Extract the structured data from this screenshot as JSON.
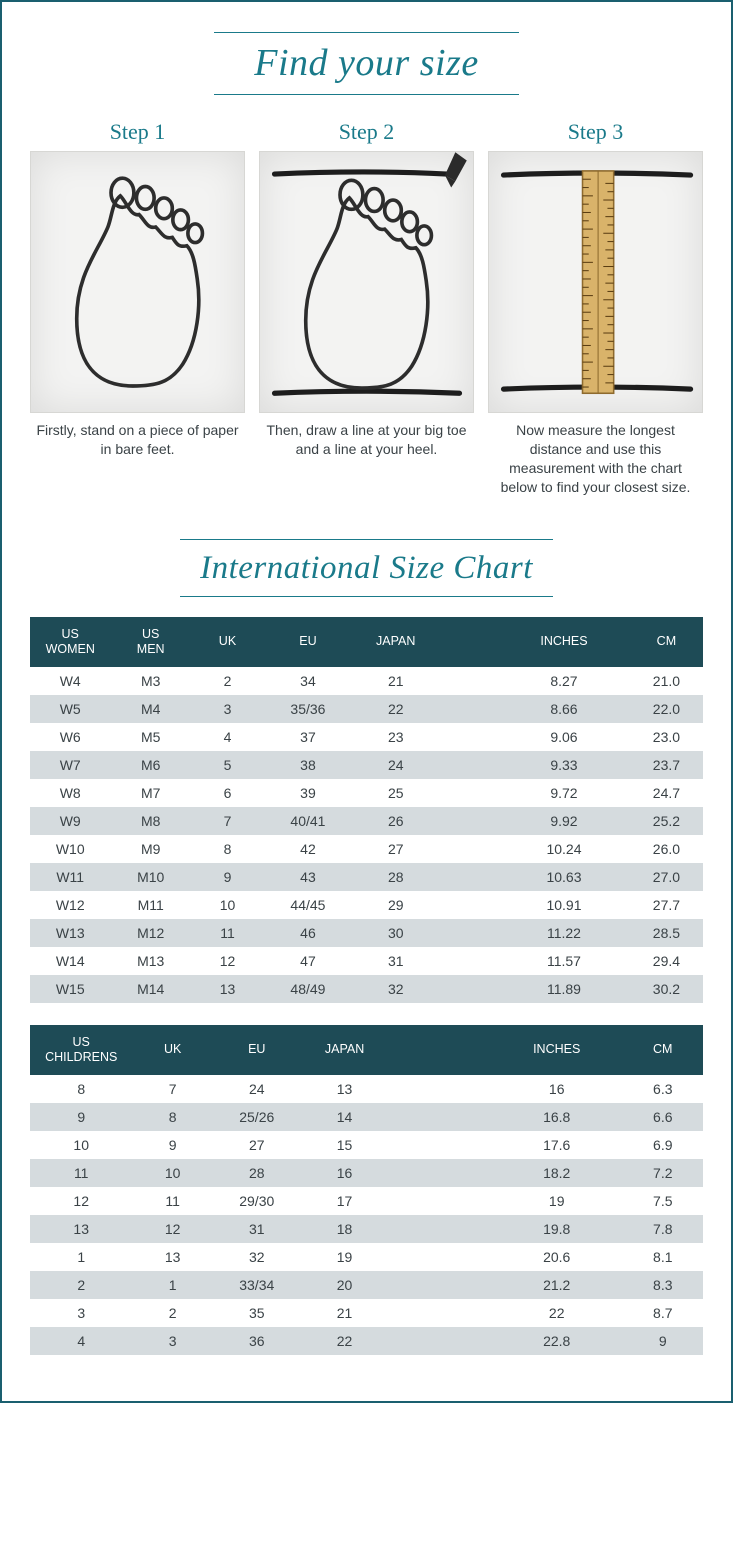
{
  "title": "Find your size",
  "chartTitle": "International Size Chart",
  "colors": {
    "accent": "#1a7a8a",
    "frame": "#1a5f6f",
    "headerBg": "#1e4b56",
    "rowAlt": "#d5dbde",
    "cardBg": "#f3f3f2",
    "textBody": "#3a4246",
    "pencilBody": "#2b2b2b",
    "rulerFill": "#d9b36a",
    "rulerEdge": "#8e6a2e"
  },
  "steps": [
    {
      "label": "Step 1",
      "caption": "Firstly, stand on a piece of paper in bare feet."
    },
    {
      "label": "Step 2",
      "caption": "Then, draw a line at your big toe and a line at your heel."
    },
    {
      "label": "Step 3",
      "caption": "Now measure the longest distance and use this measurement with the chart below to find your closest size."
    }
  ],
  "adultTable": {
    "headers": [
      "US WOMEN",
      "US MEN",
      "UK",
      "EU",
      "JAPAN",
      "",
      "INCHES",
      "CM"
    ],
    "rows": [
      [
        "W4",
        "M3",
        "2",
        "34",
        "21",
        "",
        "8.27",
        "21.0"
      ],
      [
        "W5",
        "M4",
        "3",
        "35/36",
        "22",
        "",
        "8.66",
        "22.0"
      ],
      [
        "W6",
        "M5",
        "4",
        "37",
        "23",
        "",
        "9.06",
        "23.0"
      ],
      [
        "W7",
        "M6",
        "5",
        "38",
        "24",
        "",
        "9.33",
        "23.7"
      ],
      [
        "W8",
        "M7",
        "6",
        "39",
        "25",
        "",
        "9.72",
        "24.7"
      ],
      [
        "W9",
        "M8",
        "7",
        "40/41",
        "26",
        "",
        "9.92",
        "25.2"
      ],
      [
        "W10",
        "M9",
        "8",
        "42",
        "27",
        "",
        "10.24",
        "26.0"
      ],
      [
        "W11",
        "M10",
        "9",
        "43",
        "28",
        "",
        "10.63",
        "27.0"
      ],
      [
        "W12",
        "M11",
        "10",
        "44/45",
        "29",
        "",
        "10.91",
        "27.7"
      ],
      [
        "W13",
        "M12",
        "11",
        "46",
        "30",
        "",
        "11.22",
        "28.5"
      ],
      [
        "W14",
        "M13",
        "12",
        "47",
        "31",
        "",
        "11.57",
        "29.4"
      ],
      [
        "W15",
        "M14",
        "13",
        "48/49",
        "32",
        "",
        "11.89",
        "30.2"
      ]
    ]
  },
  "childTable": {
    "headers": [
      "US CHILDRENS",
      "UK",
      "EU",
      "JAPAN",
      "",
      "INCHES",
      "CM"
    ],
    "rows": [
      [
        "8",
        "7",
        "24",
        "13",
        "",
        "16",
        "6.3"
      ],
      [
        "9",
        "8",
        "25/26",
        "14",
        "",
        "16.8",
        "6.6"
      ],
      [
        "10",
        "9",
        "27",
        "15",
        "",
        "17.6",
        "6.9"
      ],
      [
        "11",
        "10",
        "28",
        "16",
        "",
        "18.2",
        "7.2"
      ],
      [
        "12",
        "11",
        "29/30",
        "17",
        "",
        "19",
        "7.5"
      ],
      [
        "13",
        "12",
        "31",
        "18",
        "",
        "19.8",
        "7.8"
      ],
      [
        "1",
        "13",
        "32",
        "19",
        "",
        "20.6",
        "8.1"
      ],
      [
        "2",
        "1",
        "33/34",
        "20",
        "",
        "21.2",
        "8.3"
      ],
      [
        "3",
        "2",
        "35",
        "21",
        "",
        "22",
        "8.7"
      ],
      [
        "4",
        "3",
        "36",
        "22",
        "",
        "22.8",
        "9"
      ]
    ]
  }
}
